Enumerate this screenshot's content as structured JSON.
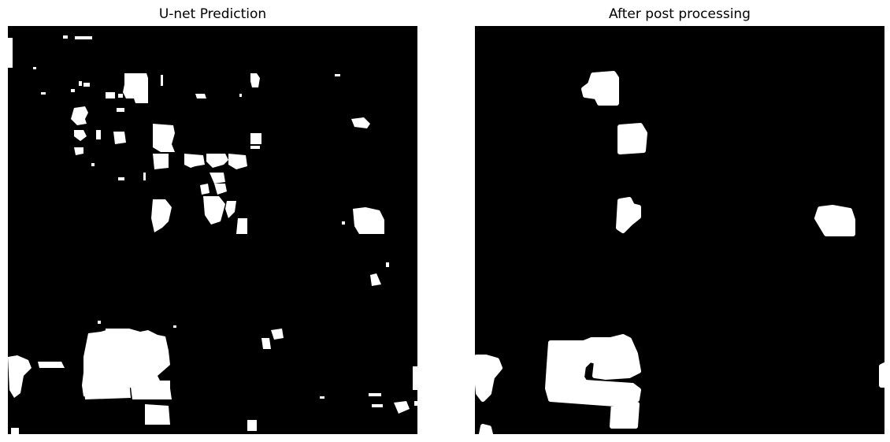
{
  "panels": [
    {
      "title": "U-net Prediction",
      "background_color": "#000000",
      "foreground_color": "#ffffff"
    },
    {
      "title": "After post processing",
      "background_color": "#000000",
      "foreground_color": "#ffffff"
    }
  ]
}
